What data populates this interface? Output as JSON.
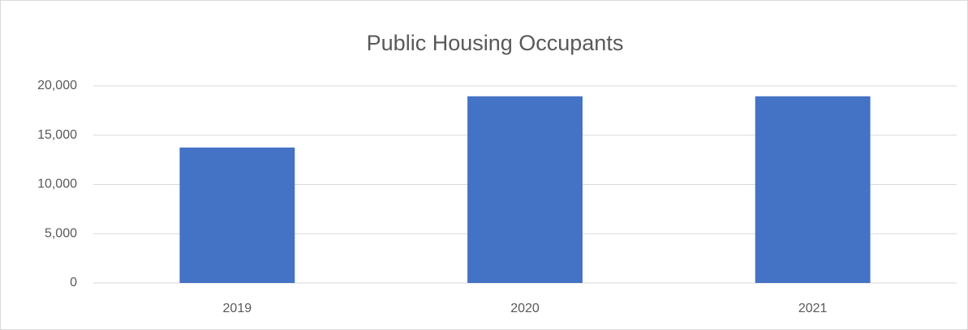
{
  "chart_data": {
    "type": "bar",
    "title": "Public Housing Occupants",
    "categories": [
      "2019",
      "2020",
      "2021"
    ],
    "values": [
      13750,
      18950,
      18950
    ],
    "color": "#4472c4",
    "ylim": [
      0,
      20000
    ],
    "yticks": [
      0,
      {
        "value": 5000,
        "label": "5,000"
      },
      {
        "value": 10000,
        "label": "10,000"
      },
      {
        "value": 15000,
        "label": "15,000"
      },
      {
        "value": 20000,
        "label": "20,000"
      }
    ],
    "grid": true
  }
}
